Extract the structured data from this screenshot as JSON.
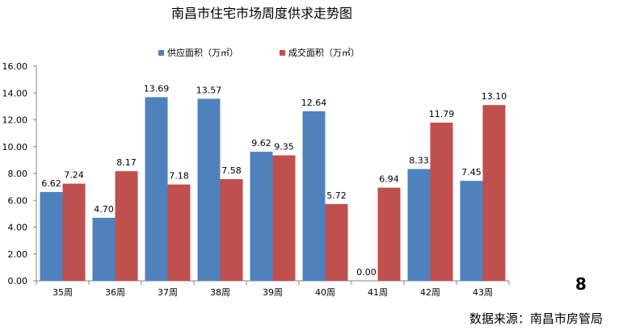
{
  "chart_data": {
    "type": "bar",
    "title": "南昌市住宅市场周度供求走势图",
    "categories": [
      "35周",
      "36周",
      "37周",
      "38周",
      "39周",
      "40周",
      "41周",
      "42周",
      "43周"
    ],
    "series": [
      {
        "name": "供应面积（万㎡）",
        "color": "#4F81BD",
        "values": [
          6.62,
          4.7,
          13.69,
          13.57,
          9.62,
          12.64,
          0.0,
          8.33,
          7.45
        ],
        "labels": [
          "6.62",
          "4.70",
          "13.69",
          "13.57",
          "9.62",
          "12.64",
          "0.00",
          "8.33",
          "7.45"
        ]
      },
      {
        "name": "成交面积（万㎡）",
        "color": "#C0504D",
        "values": [
          7.24,
          8.17,
          7.18,
          7.58,
          9.35,
          5.72,
          6.94,
          11.79,
          13.1
        ],
        "labels": [
          "7.24",
          "8.17",
          "7.18",
          "7.58",
          "9.35",
          "5.72",
          "6.94",
          "11.79",
          "13.10"
        ]
      }
    ],
    "ylim": [
      0,
      16
    ],
    "yticks": [
      "0.00",
      "2.00",
      "4.00",
      "6.00",
      "8.00",
      "10.00",
      "12.00",
      "14.00",
      "16.00"
    ],
    "legend_position": "top",
    "grid": false
  },
  "page_number": "8",
  "source": "数据来源：南昌市房管局"
}
